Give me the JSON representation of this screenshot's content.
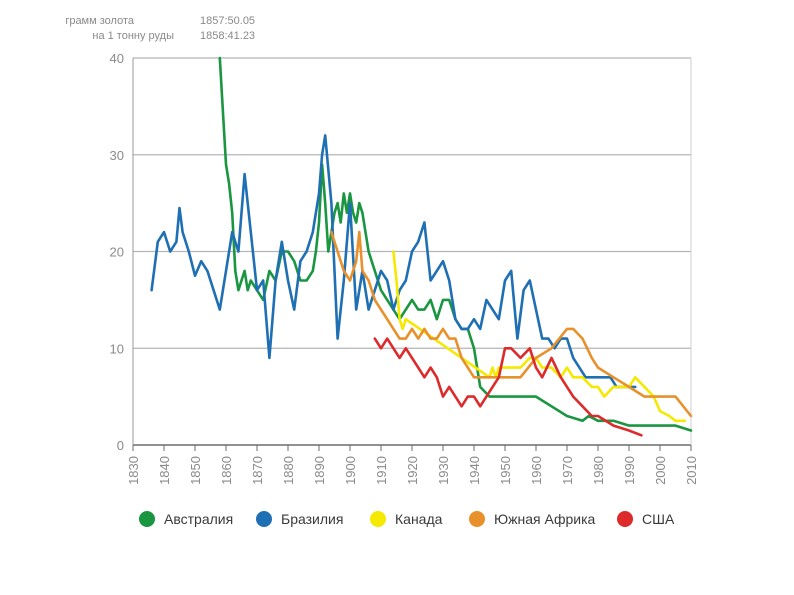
{
  "chart_data": {
    "type": "line",
    "title": "",
    "xlabel": "",
    "ylabel": "",
    "xlim": [
      1830,
      2010
    ],
    "ylim": [
      0,
      40
    ],
    "grid": true,
    "legend_position": "bottom",
    "x_ticks": [
      1830,
      1840,
      1850,
      1860,
      1870,
      1880,
      1890,
      1900,
      1910,
      1920,
      1930,
      1940,
      1950,
      1960,
      1970,
      1980,
      1990,
      2000,
      2010
    ],
    "y_ticks": [
      0,
      10,
      20,
      30,
      40
    ],
    "annotation": {
      "label_line1": "грамм золота",
      "label_line2": "на 1 тонну руды",
      "value_line1": "1857:50.05",
      "value_line2": "1858:41.23"
    },
    "series": [
      {
        "name": "Австралия",
        "color": "#1a9641",
        "x": [
          1858,
          1860,
          1861,
          1862,
          1863,
          1864,
          1865,
          1866,
          1867,
          1868,
          1870,
          1872,
          1874,
          1876,
          1878,
          1880,
          1882,
          1884,
          1886,
          1888,
          1889,
          1890,
          1891,
          1892,
          1893,
          1894,
          1895,
          1896,
          1897,
          1898,
          1899,
          1900,
          1901,
          1902,
          1903,
          1904,
          1906,
          1908,
          1910,
          1912,
          1914,
          1916,
          1918,
          1920,
          1922,
          1924,
          1926,
          1928,
          1930,
          1932,
          1934,
          1936,
          1938,
          1940,
          1942,
          1945,
          1950,
          1955,
          1960,
          1965,
          1970,
          1975,
          1977,
          1980,
          1985,
          1990,
          1995,
          2000,
          2005,
          2010
        ],
        "y": [
          41.2,
          29,
          27,
          24,
          18,
          16,
          17,
          18,
          16,
          17,
          16,
          15,
          18,
          17,
          20,
          20,
          19,
          17,
          17,
          18,
          20,
          23,
          29,
          25,
          20,
          22,
          24,
          25,
          23,
          26,
          24,
          26,
          24,
          23,
          25,
          24,
          20,
          18,
          16,
          15,
          14,
          13,
          14,
          15,
          14,
          14,
          15,
          13,
          15,
          15,
          13,
          12,
          12,
          10,
          6,
          5,
          5,
          5,
          5,
          4,
          3,
          2.5,
          3,
          2.5,
          2.5,
          2,
          2,
          2,
          2,
          1.5
        ]
      },
      {
        "name": "Бразилия",
        "color": "#1f6fb4",
        "x": [
          1836,
          1838,
          1840,
          1842,
          1844,
          1845,
          1846,
          1848,
          1850,
          1852,
          1854,
          1856,
          1858,
          1860,
          1862,
          1864,
          1866,
          1868,
          1870,
          1872,
          1874,
          1876,
          1878,
          1880,
          1882,
          1884,
          1886,
          1888,
          1890,
          1891,
          1892,
          1894,
          1896,
          1898,
          1900,
          1902,
          1904,
          1906,
          1908,
          1910,
          1912,
          1914,
          1916,
          1918,
          1920,
          1922,
          1924,
          1926,
          1928,
          1930,
          1932,
          1934,
          1936,
          1938,
          1940,
          1942,
          1944,
          1946,
          1948,
          1950,
          1952,
          1954,
          1956,
          1958,
          1960,
          1962,
          1964,
          1966,
          1968,
          1970,
          1972,
          1974,
          1976,
          1978,
          1980,
          1982,
          1984,
          1986,
          1988,
          1990,
          1992
        ],
        "y": [
          16,
          21,
          22,
          20,
          21,
          24.5,
          22,
          20,
          17.5,
          19,
          18,
          16,
          14,
          18,
          22,
          20,
          28,
          22,
          16,
          17,
          9,
          17,
          21,
          17,
          14,
          19,
          20,
          22,
          26,
          30,
          32,
          25,
          11,
          17,
          25,
          14,
          18,
          14,
          16,
          18,
          17,
          14,
          16,
          17,
          20,
          21,
          23,
          17,
          18,
          19,
          17,
          13,
          12,
          12,
          13,
          12,
          15,
          14,
          13,
          17,
          18,
          11,
          16,
          17,
          14,
          11,
          11,
          10,
          11,
          11,
          9,
          8,
          7,
          7,
          7,
          7,
          7,
          6,
          6,
          6,
          6
        ]
      },
      {
        "name": "Канада",
        "color": "#f5e900",
        "x": [
          1914,
          1915,
          1916,
          1917,
          1918,
          1945,
          1946,
          1947,
          1948,
          1950,
          1955,
          1958,
          1960,
          1962,
          1965,
          1968,
          1970,
          1972,
          1975,
          1978,
          1980,
          1982,
          1985,
          1988,
          1990,
          1992,
          1995,
          1998,
          2000,
          2003,
          2005,
          2008
        ],
        "y": [
          20,
          17,
          13,
          12,
          13,
          7,
          8,
          7,
          8,
          8,
          8,
          9,
          9,
          8,
          8,
          7,
          8,
          7,
          7,
          6,
          6,
          5,
          6,
          6,
          6,
          7,
          6,
          5,
          3.5,
          3,
          2.5,
          2.5
        ]
      },
      {
        "name": "Южная Африка",
        "color": "#e8912c",
        "x": [
          1894,
          1896,
          1898,
          1900,
          1902,
          1903,
          1904,
          1906,
          1908,
          1910,
          1912,
          1914,
          1916,
          1918,
          1920,
          1922,
          1924,
          1926,
          1928,
          1930,
          1932,
          1934,
          1936,
          1938,
          1940,
          1942,
          1945,
          1950,
          1955,
          1960,
          1965,
          1970,
          1972,
          1975,
          1978,
          1980,
          1985,
          1990,
          1995,
          2000,
          2005,
          2010
        ],
        "y": [
          22,
          20,
          18,
          17,
          19,
          22,
          18,
          17,
          15,
          14,
          13,
          12,
          11,
          11,
          12,
          11,
          12,
          11,
          11,
          12,
          11,
          11,
          9,
          8,
          7,
          7,
          7,
          7,
          7,
          9,
          10,
          12,
          12,
          11,
          9,
          8,
          7,
          6,
          5,
          5,
          5,
          3
        ]
      },
      {
        "name": "США",
        "color": "#dd2b2b",
        "x": [
          1908,
          1910,
          1912,
          1914,
          1916,
          1918,
          1920,
          1922,
          1924,
          1926,
          1928,
          1930,
          1932,
          1934,
          1936,
          1938,
          1940,
          1942,
          1944,
          1946,
          1948,
          1950,
          1952,
          1955,
          1958,
          1960,
          1962,
          1965,
          1968,
          1970,
          1972,
          1975,
          1978,
          1980,
          1985,
          1990,
          1994
        ],
        "y": [
          11,
          10,
          11,
          10,
          9,
          10,
          9,
          8,
          7,
          8,
          7,
          5,
          6,
          5,
          4,
          5,
          5,
          4,
          5,
          6,
          7,
          10,
          10,
          9,
          10,
          8,
          7,
          9,
          7,
          6,
          5,
          4,
          3,
          3,
          2,
          1.5,
          1
        ]
      }
    ]
  }
}
